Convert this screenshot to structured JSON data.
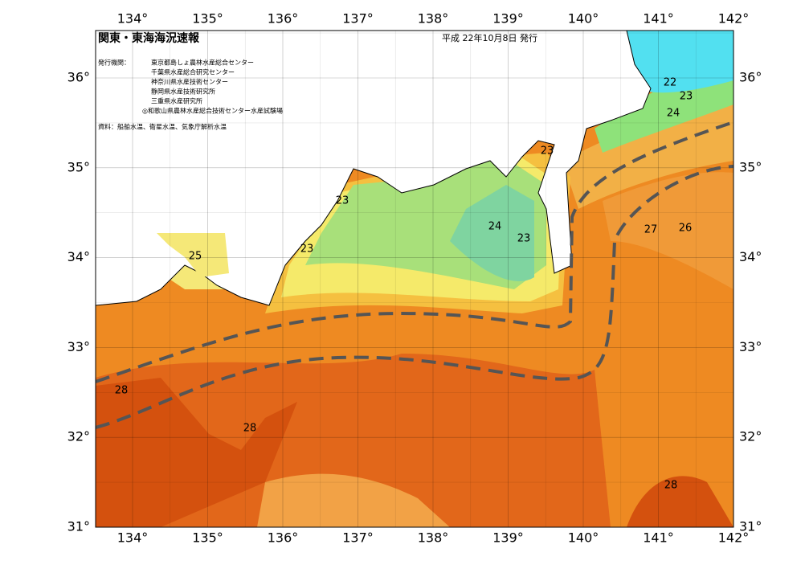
{
  "header": {
    "title": "関東・東海海況速報",
    "date": "平成 22年10月8日 発行"
  },
  "publisher": {
    "label": "発行機関：",
    "agencies": [
      "東京都島しょ農林水産総合センター",
      "千葉県水産総合研究センター",
      "神奈川県水産技術センター",
      "静岡県水産技術研究所",
      "三重県水産研究所",
      "◎和歌山県農林水産総合技術センター水産試験場"
    ]
  },
  "source": "資料：船舶水温、衛星水温、気象庁解析水温",
  "longitude_labels": [
    "134°",
    "135°",
    "136°",
    "137°",
    "138°",
    "139°",
    "140°",
    "141°",
    "142°"
  ],
  "latitude_labels": [
    "36°",
    "35°",
    "34°",
    "33°",
    "32°",
    "31°"
  ],
  "contour_labels": [
    22,
    23,
    24,
    23,
    23,
    24,
    23,
    23,
    25,
    28,
    28,
    27,
    26,
    28
  ]
}
